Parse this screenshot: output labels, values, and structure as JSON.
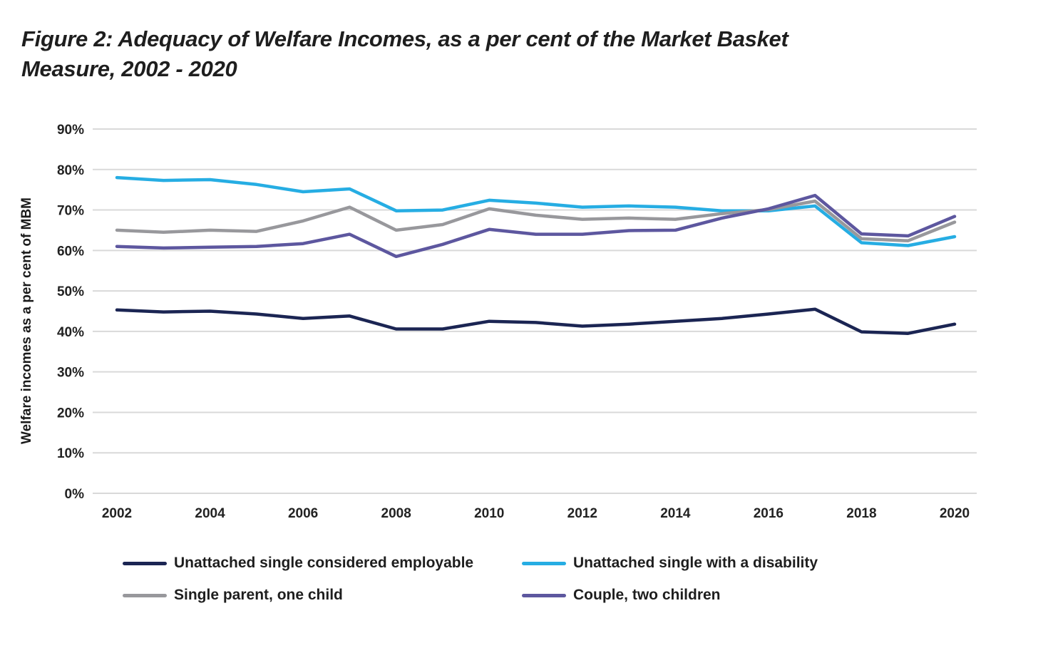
{
  "title_lines": [
    "Figure 2: Adequacy of Welfare Incomes, as a per cent of the Market Basket",
    "Measure, 2002 - 2020"
  ],
  "chart_data": {
    "type": "line",
    "title": "Figure 2: Adequacy of Welfare Incomes, as a per cent of the Market Basket Measure, 2002 - 2020",
    "xlabel": "",
    "ylabel": "Welfare incomes as a per cent of MBM",
    "x": [
      2002,
      2003,
      2004,
      2005,
      2006,
      2007,
      2008,
      2009,
      2010,
      2011,
      2012,
      2013,
      2014,
      2015,
      2016,
      2017,
      2018,
      2019,
      2020
    ],
    "x_tick_labels": [
      "2002",
      "2004",
      "2006",
      "2008",
      "2010",
      "2012",
      "2014",
      "2016",
      "2018",
      "2020"
    ],
    "x_ticks": [
      2002,
      2004,
      2006,
      2008,
      2010,
      2012,
      2014,
      2016,
      2018,
      2020
    ],
    "y_ticks": [
      0,
      10,
      20,
      30,
      40,
      50,
      60,
      70,
      80,
      90
    ],
    "y_tick_labels": [
      "0%",
      "10%",
      "20%",
      "30%",
      "40%",
      "50%",
      "60%",
      "70%",
      "80%",
      "90%"
    ],
    "ylim": [
      0,
      90
    ],
    "xlim": [
      2002,
      2020
    ],
    "grid": true,
    "legend_position": "bottom",
    "series": [
      {
        "name": "Unattached single considered employable",
        "color": "#1b2553",
        "values": [
          45.3,
          44.8,
          45.0,
          44.3,
          43.2,
          43.8,
          40.6,
          40.6,
          42.5,
          42.2,
          41.3,
          41.8,
          42.5,
          43.2,
          44.3,
          45.5,
          39.9,
          39.5,
          41.8
        ]
      },
      {
        "name": "Unattached single with a disability",
        "color": "#26ade3",
        "values": [
          78.0,
          77.3,
          77.5,
          76.3,
          74.5,
          75.2,
          69.8,
          70.0,
          72.4,
          71.7,
          70.7,
          71.0,
          70.7,
          69.8,
          69.8,
          71.0,
          61.9,
          61.2,
          63.4
        ]
      },
      {
        "name": "Single parent, one child",
        "color": "#98989c",
        "values": [
          65.0,
          64.5,
          65.0,
          64.7,
          67.3,
          70.7,
          65.0,
          66.4,
          70.3,
          68.7,
          67.7,
          68.0,
          67.7,
          69.1,
          70.1,
          72.2,
          62.9,
          62.4,
          67.0
        ]
      },
      {
        "name": "Couple, two children",
        "color": "#5d579f",
        "values": [
          61.0,
          60.6,
          60.8,
          61.0,
          61.7,
          64.0,
          58.5,
          61.5,
          65.2,
          64.0,
          64.0,
          64.9,
          65.0,
          68.0,
          70.3,
          73.6,
          64.1,
          63.6,
          68.4
        ]
      }
    ]
  }
}
